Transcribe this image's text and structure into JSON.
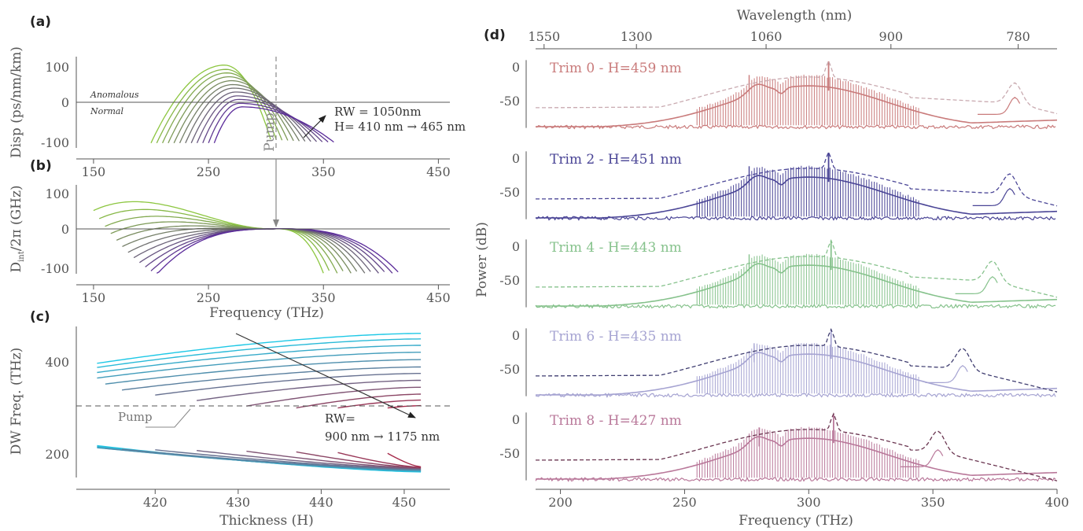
{
  "chart_data": [
    {
      "id": "a",
      "type": "line",
      "panel_label": "(a)",
      "ylabel": "Disp (ps/nm/km)",
      "xticks": [
        150,
        250,
        350,
        450
      ],
      "yticks": [
        100,
        0,
        -100
      ],
      "xlim": [
        135,
        460
      ],
      "ylim": [
        -115,
        125
      ],
      "regions": {
        "upper": "Anomalous",
        "lower": "Normal"
      },
      "pump_label": "Pump",
      "annotation": [
        "RW = 1050nm",
        "H= 410 nm → 465 nm"
      ],
      "series_count": 12,
      "series_peak_frequency_THz": [
        264,
        265,
        266,
        268,
        270,
        271,
        272,
        274,
        275,
        276,
        277,
        279
      ],
      "series_peak_dispersion": [
        105,
        93,
        83,
        72,
        61,
        50,
        40,
        29,
        18,
        8,
        -3,
        -13
      ],
      "series_range_THz": [
        [
          200,
          360
        ],
        [
          360,
          200
        ]
      ],
      "colors": [
        "#8cc63f",
        "#5a2a9a"
      ]
    },
    {
      "id": "b",
      "type": "line",
      "panel_label": "(b)",
      "ylabel": "D_int/2π (GHz)",
      "ylabel_main": "D",
      "ylabel_sub": "int",
      "ylabel_rest": "/2π (GHz)",
      "xlabel": "Frequency (THz)",
      "xticks": [
        150,
        250,
        350,
        450
      ],
      "yticks": [
        100,
        0,
        -100
      ],
      "xlim": [
        135,
        460
      ],
      "ylim": [
        -125,
        125
      ],
      "pump_frequency_THz": 305,
      "series_count": 12,
      "colors": [
        "#8cc63f",
        "#5a2a9a"
      ]
    },
    {
      "id": "c",
      "type": "line",
      "panel_label": "(c)",
      "ylabel": "DW Freq. (THz)",
      "xlabel": "Thickness (H)",
      "xticks": [
        420,
        430,
        440,
        450
      ],
      "yticks": [
        400,
        200
      ],
      "xlim": [
        410.5,
        455.5
      ],
      "ylim": [
        160,
        480
      ],
      "pump_frequency_THz": 305,
      "pump_label": "Pump",
      "annotation": [
        "RW=",
        "900 nm → 1175 nm"
      ],
      "upper_branch_start_H": [
        413,
        413,
        413,
        413,
        414,
        416,
        420,
        425,
        431,
        437,
        442,
        448
      ],
      "upper_branch_end_THz": [
        467,
        455,
        441,
        426,
        410,
        394,
        380,
        365,
        350,
        335,
        322,
        310
      ],
      "lower_branch_start_H": [
        413,
        413,
        413,
        413,
        414,
        416,
        420,
        425,
        431,
        437,
        442,
        448
      ],
      "lower_branch_end_THz": [
        166,
        167,
        168,
        169,
        170,
        171,
        172,
        173,
        174,
        175,
        176,
        177
      ],
      "colors": [
        "#1ec8e6",
        "#a52a4a"
      ]
    },
    {
      "id": "d",
      "type": "line",
      "panel_label": "(d)",
      "xlabel": "Frequency (THz)",
      "ylabel": "Power (dB)",
      "top_axis_label": "Wavelength (nm)",
      "xticks": [
        200,
        250,
        300,
        350,
        400
      ],
      "top_ticks_nm": [
        1550,
        1300,
        1060,
        900,
        780
      ],
      "yticks": [
        0,
        -50
      ],
      "xlim": [
        190,
        400
      ],
      "ylim": [
        -95,
        15
      ],
      "series": [
        {
          "name": "Trim 0 - H=459 nm",
          "color": "#c97b7b",
          "dashed_color": "#c9aab0",
          "pump_THz": 308,
          "dw_THz": 383,
          "spike_THz": 276
        },
        {
          "name": "Trim 2 - H=451 nm",
          "color": "#4a4596",
          "dashed_color": "#4a4596",
          "pump_THz": 308,
          "dw_THz": 381,
          "spike_THz": 276
        },
        {
          "name": "Trim 4 - H=443 nm",
          "color": "#86c28c",
          "dashed_color": "#86c28c",
          "pump_THz": 309,
          "dw_THz": 374,
          "spike_THz": 276
        },
        {
          "name": "Trim 6 - H=435 nm",
          "color": "#a6a4d2",
          "dashed_color": "#3f3d70",
          "pump_THz": 309,
          "dw_THz": 362,
          "spike_THz": 278
        },
        {
          "name": "Trim 8 - H=427 nm",
          "color": "#b9789a",
          "dashed_color": "#6a3550",
          "pump_THz": 310,
          "dw_THz": 352,
          "spike_THz": 280
        }
      ]
    }
  ]
}
